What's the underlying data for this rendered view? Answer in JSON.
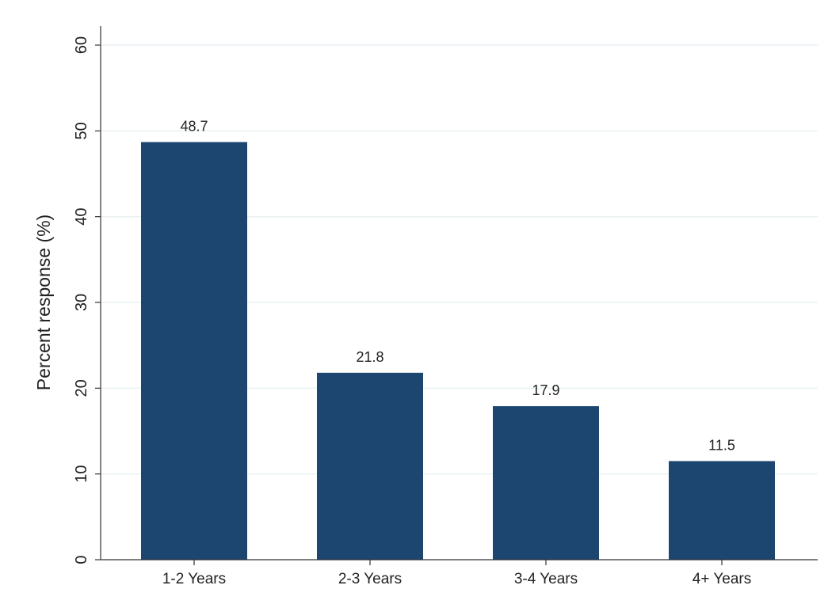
{
  "chart_data": {
    "type": "bar",
    "title": "",
    "xlabel": "",
    "ylabel": "Percent response (%)",
    "categories": [
      "1-2 Years",
      "2-3 Years",
      "3-4 Years",
      "4+ Years"
    ],
    "values": [
      48.7,
      21.8,
      17.9,
      11.5
    ],
    "value_labels": [
      "48.7",
      "21.8",
      "17.9",
      "11.5"
    ],
    "ylim": [
      0,
      60
    ],
    "yticks": [
      0,
      10,
      20,
      30,
      40,
      50,
      60
    ],
    "ytick_labels": [
      "0",
      "10",
      "20",
      "30",
      "40",
      "50",
      "60"
    ],
    "grid": true,
    "legend": "none",
    "bar_color": "#1c4670",
    "grid_color": "#eaf1f3",
    "axis_color": "#333333"
  }
}
